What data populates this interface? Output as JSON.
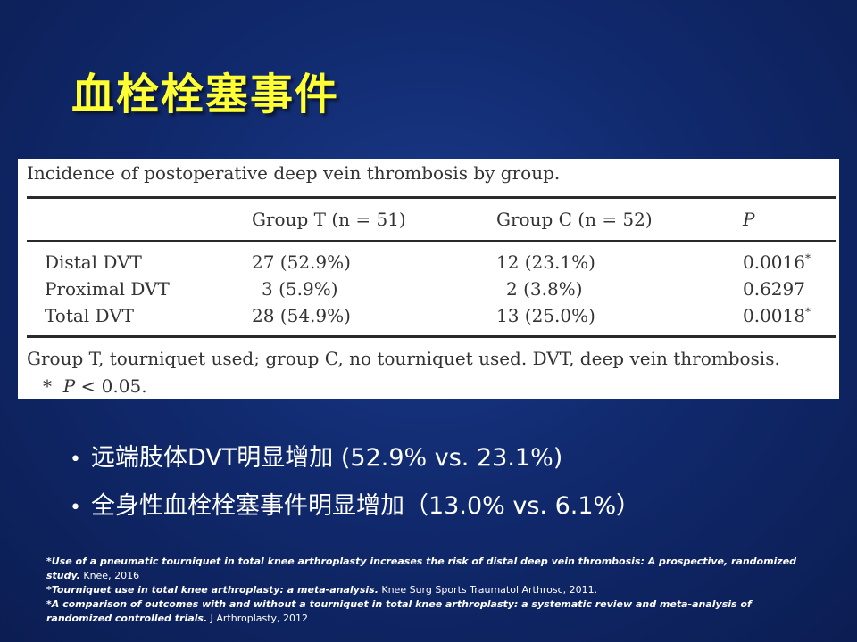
{
  "slide": {
    "title": "血栓栓塞事件"
  },
  "table": {
    "caption": "Incidence of postoperative deep vein thrombosis by group.",
    "headers": [
      "",
      "Group T (n = 51)",
      "Group C (n = 52)",
      "P"
    ],
    "rows": [
      {
        "label": "Distal DVT",
        "group_t": "27 (52.9%)",
        "group_c": "12 (23.1%)",
        "p": "0.0016",
        "mark": "*"
      },
      {
        "label": "Proximal DVT",
        "group_t": "3 (5.9%)",
        "group_c": "2 (3.8%)",
        "p": "0.6297",
        "mark": ""
      },
      {
        "label": "Total DVT",
        "group_t": "28 (54.9%)",
        "group_c": "13 (25.0%)",
        "p": "0.0018",
        "mark": "*"
      }
    ],
    "footnote": "Group T, tourniquet used; group C, no tourniquet used. DVT, deep vein thrombosis.",
    "footnote2_star": "*",
    "footnote2_p": "P",
    "footnote2_rest": " < 0.05."
  },
  "bullets": [
    {
      "marker": "•",
      "text": "远端肢体DVT明显增加 (52.9% vs. 23.1%)"
    },
    {
      "marker": "•",
      "text": "全身性血栓栓塞事件明显增加（13.0% vs. 6.1%）"
    }
  ],
  "references": [
    {
      "title": "*Use of a pneumatic tourniquet in total knee arthroplasty increases the risk of distal deep vein thrombosis: A prospective, randomized study.",
      "source": " Knee, 2016"
    },
    {
      "title": "*Tourniquet use in total knee arthroplasty: a meta-analysis.",
      "source": " Knee Surg Sports Traumatol Arthrosc, 2011."
    },
    {
      "title": "*A comparison of outcomes with and without a tourniquet in total knee arthroplasty: a systematic review and meta-analysis of randomized controlled trials.",
      "source": " J Arthroplasty, 2012"
    }
  ],
  "colors": {
    "title": "#ffff33",
    "background": "#112a6e",
    "text": "#ffffff"
  }
}
